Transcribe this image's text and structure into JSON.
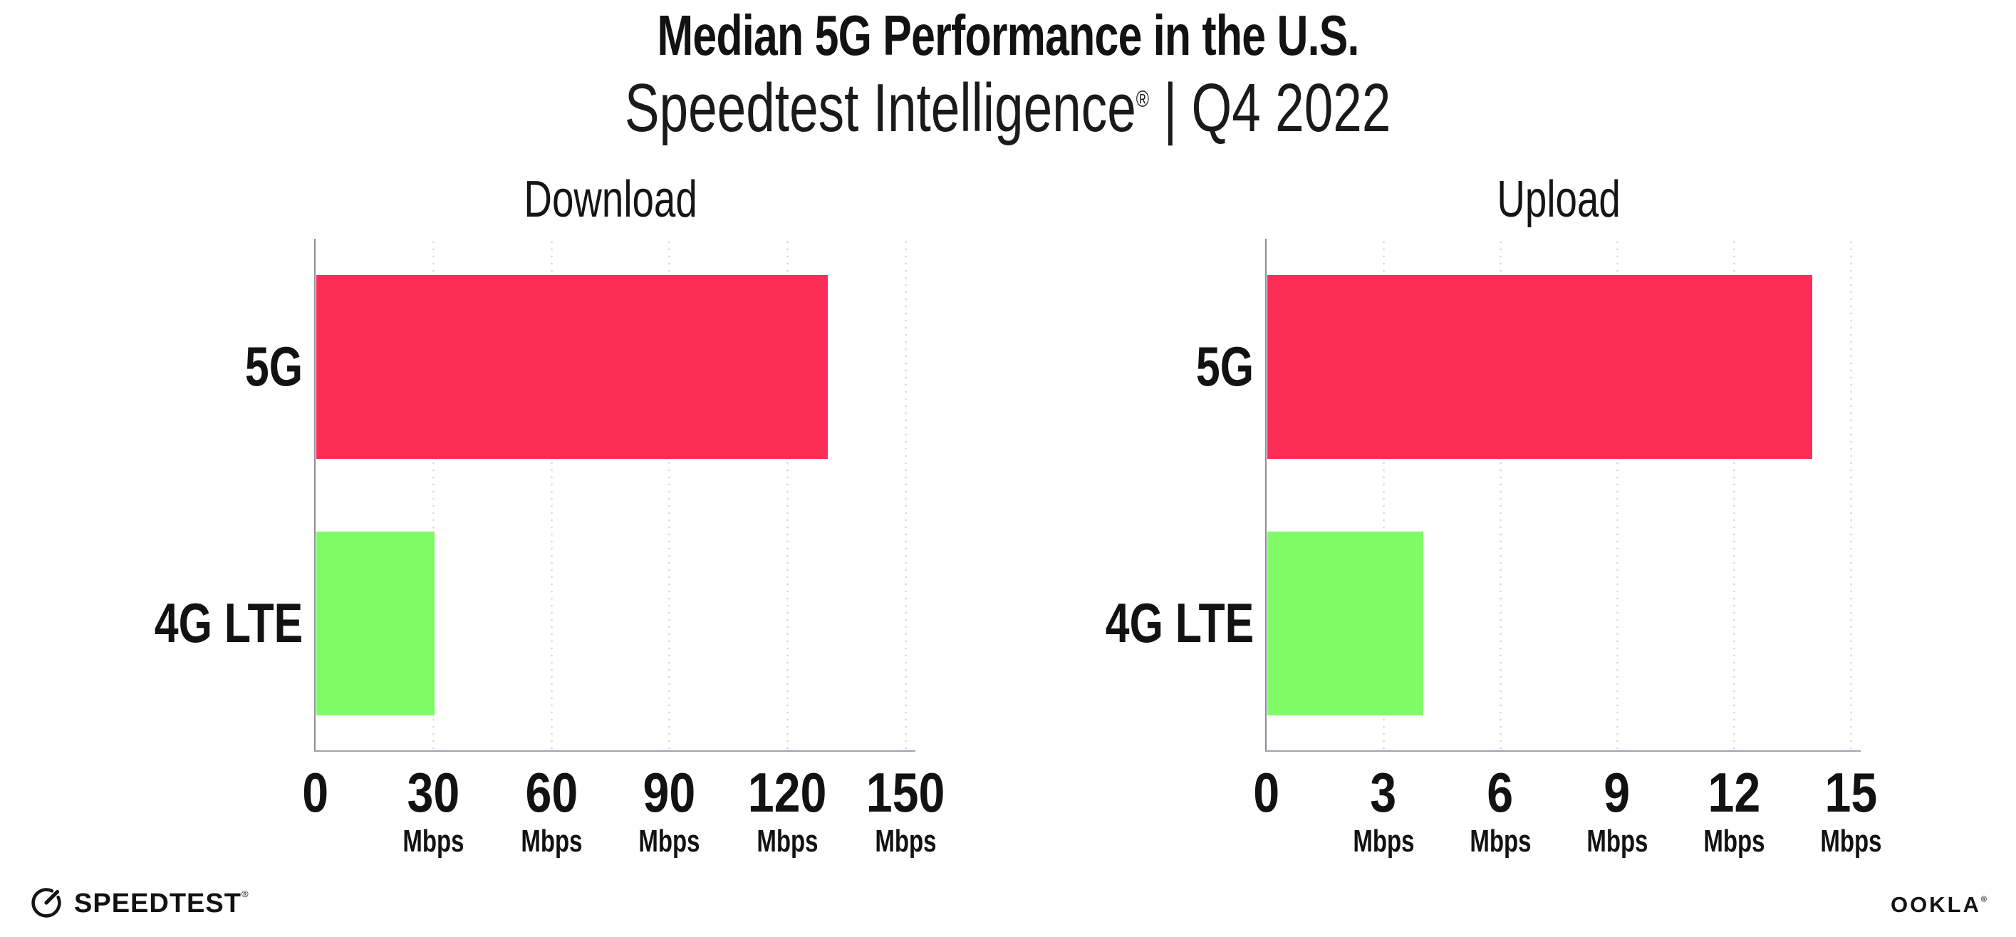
{
  "header": {
    "title": "Median 5G Performance in the U.S.",
    "subtitle_product": "Speedtest Intelligence",
    "subtitle_reg": "®",
    "subtitle_period": " | Q4 2022"
  },
  "chart_data": [
    {
      "type": "bar",
      "orientation": "horizontal",
      "title": "Download",
      "categories": [
        "5G",
        "4G LTE"
      ],
      "values": [
        130,
        30
      ],
      "unit": "Mbps",
      "xlim": [
        0,
        150
      ],
      "xticks": [
        0,
        30,
        60,
        90,
        120,
        150
      ],
      "bar_colors": [
        "#FB2D57",
        "#80FB68"
      ],
      "grid": "dotted-vertical",
      "legend": "none"
    },
    {
      "type": "bar",
      "orientation": "horizontal",
      "title": "Upload",
      "categories": [
        "5G",
        "4G LTE"
      ],
      "values": [
        14,
        4
      ],
      "unit": "Mbps",
      "xlim": [
        0,
        15
      ],
      "xticks": [
        0,
        3,
        6,
        9,
        12,
        15
      ],
      "bar_colors": [
        "#FB2D57",
        "#80FB68"
      ],
      "grid": "dotted-vertical",
      "legend": "none"
    }
  ],
  "colors": {
    "bar_5g": "#FB2D57",
    "bar_4g_lte": "#80FB68",
    "grid_dot": "#D9D9E4",
    "axis": "#9B9BA3",
    "text": "#121212"
  },
  "footer": {
    "speedtest_label": "SPEEDTEST",
    "speedtest_reg": "®",
    "ookla_label": "OOKLA",
    "ookla_reg": "®"
  }
}
